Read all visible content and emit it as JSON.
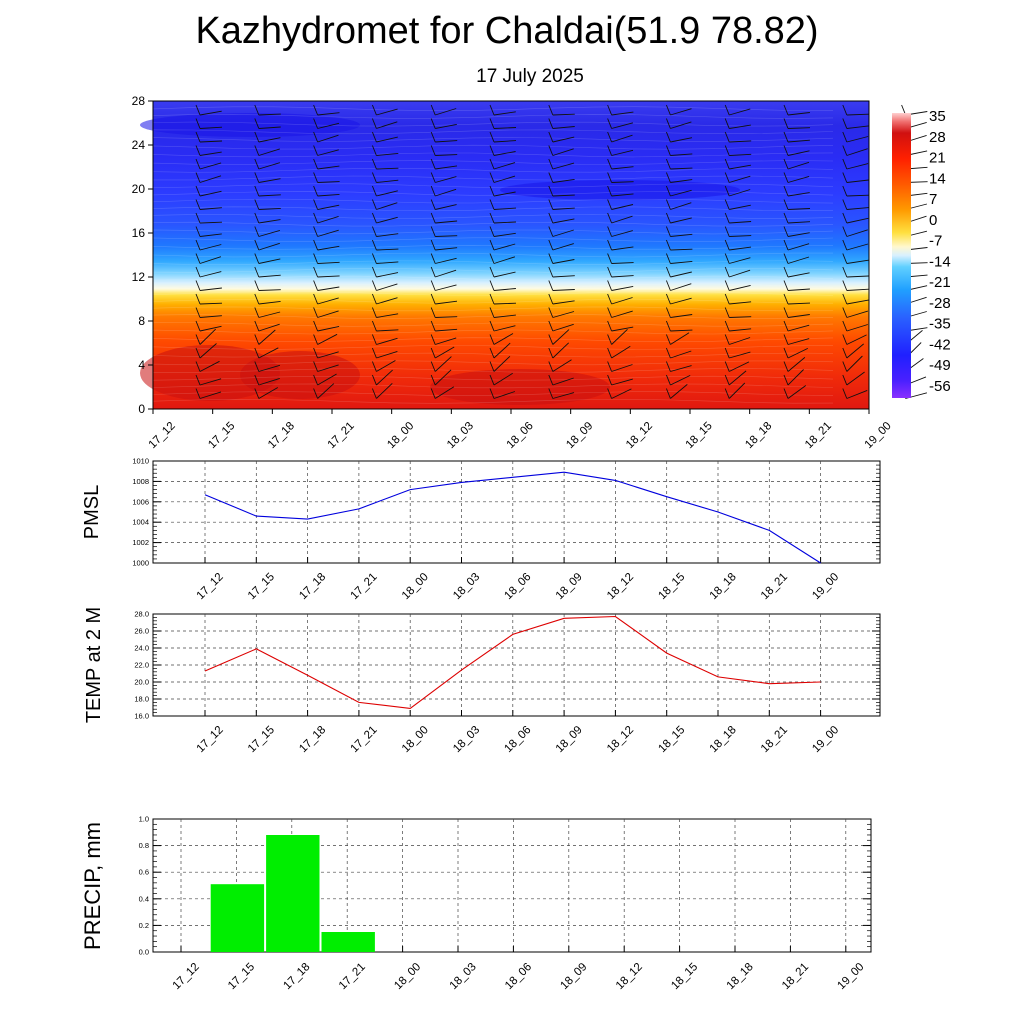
{
  "header": {
    "title": "Kazhydromet for Chaldai(51.9 78.82)",
    "subtitle": "17 July 2025"
  },
  "time_labels": [
    "17_12",
    "17_15",
    "17_18",
    "17_21",
    "18_00",
    "18_03",
    "18_06",
    "18_09",
    "18_12",
    "18_15",
    "18_18",
    "18_21",
    "19_00"
  ],
  "chart_data": [
    {
      "type": "heatmap",
      "name": "temperature-height-section",
      "x": [
        "17_12",
        "17_15",
        "17_18",
        "17_21",
        "18_00",
        "18_03",
        "18_06",
        "18_09",
        "18_12",
        "18_15",
        "18_18",
        "18_21",
        "19_00"
      ],
      "y_ticks": [
        "0",
        "4",
        "8",
        "12",
        "16",
        "20",
        "24",
        "28"
      ],
      "ylim": [
        0,
        28
      ],
      "colorbar_labels": [
        "35",
        "28",
        "21",
        "14",
        "7",
        "0",
        "-7",
        "-14",
        "-21",
        "-28",
        "-35",
        "-42",
        "-49",
        "-56"
      ],
      "colorbar_range": [
        -60,
        38
      ],
      "wind_barbs": true,
      "colors": {
        "hot": "#d01818",
        "warm": "#ff6a00",
        "mild": "#ffd21e",
        "neutral": "#fff5c8",
        "cool": "#80d0ff",
        "cold": "#1a6cff",
        "frigid": "#2020ff",
        "deep": "#7a2cff"
      }
    },
    {
      "type": "line",
      "name": "PMSL",
      "ylabel": "PMSL",
      "x": [
        "17_12",
        "17_15",
        "17_18",
        "17_21",
        "18_00",
        "18_03",
        "18_06",
        "18_09",
        "18_12",
        "18_15",
        "18_18",
        "18_21",
        "19_00"
      ],
      "series": [
        {
          "values": [
            1006.7,
            1004.6,
            1004.3,
            1005.3,
            1007.2,
            1007.9,
            1008.4,
            1008.9,
            1008.1,
            1006.5,
            1005.0,
            1003.2,
            1000.0
          ]
        }
      ],
      "ylim": [
        1000,
        1010
      ],
      "y_ticks": [
        "1000",
        "1002",
        "1004",
        "1006",
        "1008",
        "1010"
      ],
      "color": "#0000dd",
      "grid": true
    },
    {
      "type": "line",
      "name": "TEMP at 2 M",
      "ylabel": "TEMP at 2 M",
      "x": [
        "17_12",
        "17_15",
        "17_18",
        "17_21",
        "18_00",
        "18_03",
        "18_06",
        "18_09",
        "18_12",
        "18_15",
        "18_18",
        "18_21",
        "19_00"
      ],
      "series": [
        {
          "values": [
            21.3,
            23.9,
            20.8,
            17.6,
            16.9,
            21.4,
            25.6,
            27.5,
            27.7,
            23.4,
            20.6,
            19.8,
            20.0
          ]
        }
      ],
      "ylim": [
        16,
        28
      ],
      "y_ticks": [
        "16.0",
        "18.0",
        "20.0",
        "22.0",
        "24.0",
        "26.0",
        "28.0"
      ],
      "color": "#dd0000",
      "grid": true
    },
    {
      "type": "bar",
      "name": "PRECIP, mm",
      "ylabel": "PRECIP, mm",
      "categories": [
        "17_12",
        "17_15",
        "17_18",
        "17_21",
        "18_00",
        "18_03",
        "18_06",
        "18_09",
        "18_12",
        "18_15",
        "18_18",
        "18_21",
        "19_00"
      ],
      "values": [
        0,
        0.51,
        0.88,
        0.15,
        0,
        0,
        0,
        0,
        0,
        0,
        0,
        0,
        0
      ],
      "ylim": [
        0,
        1.0
      ],
      "y_ticks": [
        "0.0",
        "0.2",
        "0.4",
        "0.6",
        "0.8",
        "1.0"
      ],
      "color": "#00ee00",
      "grid": true
    }
  ]
}
